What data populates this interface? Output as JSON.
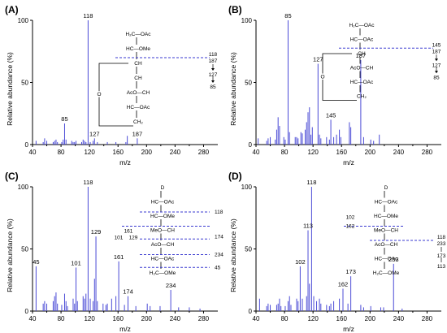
{
  "chart_data": [
    {
      "type": "bar",
      "panel_label": "(A)",
      "xlabel": "m/z",
      "ylabel": "Relative abundance (%)",
      "xlim": [
        40,
        300
      ],
      "ylim": [
        0,
        100
      ],
      "xticks": [
        "40",
        "80",
        "120",
        "160",
        "200",
        "240",
        "280"
      ],
      "yticks": [
        "0",
        "50",
        "100"
      ],
      "x": [
        45,
        55,
        57,
        60,
        69,
        71,
        73,
        75,
        81,
        83,
        85,
        87,
        95,
        97,
        99,
        101,
        109,
        111,
        113,
        115,
        118,
        121,
        125,
        127,
        131,
        145,
        157,
        171,
        173,
        187
      ],
      "y": [
        3,
        2,
        5,
        3,
        2,
        3,
        4,
        2,
        2,
        4,
        17,
        4,
        3,
        2,
        2,
        3,
        2,
        4,
        3,
        2,
        100,
        2,
        3,
        5,
        2,
        2,
        2,
        2,
        7,
        5
      ],
      "peak_labels": [
        {
          "x": 85,
          "text": "85"
        },
        {
          "x": 118,
          "text": "118"
        },
        {
          "x": 127,
          "text": "127"
        },
        {
          "x": 187,
          "text": "187"
        }
      ],
      "structure": {
        "lines": [
          "H₂C—OAc",
          "HC—OMe",
          "CH",
          "CH",
          "AcO—CH",
          "HC—OAc",
          "CH₂"
        ],
        "ring_o": "O",
        "frag_top": "118",
        "frag_bottom": "187",
        "frag_chain": [
          "127",
          "85"
        ]
      }
    },
    {
      "type": "bar",
      "panel_label": "(B)",
      "xlabel": "m/z",
      "ylabel": "Relative abundance (%)",
      "xlim": [
        40,
        300
      ],
      "ylim": [
        0,
        100
      ],
      "xticks": [
        "40",
        "80",
        "120",
        "160",
        "200",
        "240",
        "280"
      ],
      "yticks": [
        "0",
        "50",
        "100"
      ],
      "x": [
        43,
        55,
        57,
        60,
        67,
        69,
        71,
        73,
        79,
        81,
        85,
        87,
        95,
        97,
        99,
        103,
        105,
        109,
        111,
        113,
        115,
        117,
        119,
        127,
        129,
        131,
        139,
        143,
        145,
        149,
        153,
        157,
        159,
        171,
        173,
        187,
        191,
        201,
        205,
        213
      ],
      "y": [
        5,
        3,
        5,
        6,
        4,
        12,
        22,
        15,
        6,
        4,
        100,
        10,
        6,
        6,
        5,
        10,
        9,
        12,
        18,
        26,
        30,
        8,
        14,
        65,
        8,
        5,
        6,
        4,
        20,
        6,
        8,
        12,
        6,
        18,
        14,
        68,
        6,
        4,
        3,
        8
      ],
      "peak_labels": [
        {
          "x": 85,
          "text": "85"
        },
        {
          "x": 127,
          "text": "127"
        },
        {
          "x": 145,
          "text": "145"
        },
        {
          "x": 187,
          "text": "187"
        }
      ],
      "structure": {
        "lines": [
          "H₂C—OAc",
          "HC—OAc",
          "CH",
          "AcO—CH",
          "HC—OAc",
          "CH₂"
        ],
        "ring_o": "O",
        "frag_top": "145",
        "frag_bottom": "187",
        "frag_chain": [
          "127",
          "85"
        ]
      }
    },
    {
      "type": "bar",
      "panel_label": "(C)",
      "xlabel": "m/z",
      "ylabel": "Relative abundance (%)",
      "xlim": [
        40,
        300
      ],
      "ylim": [
        0,
        100
      ],
      "xticks": [
        "40",
        "80",
        "120",
        "160",
        "200",
        "240",
        "280"
      ],
      "yticks": [
        "0",
        "50",
        "100"
      ],
      "x": [
        45,
        55,
        57,
        60,
        69,
        71,
        73,
        75,
        81,
        85,
        87,
        89,
        97,
        99,
        101,
        103,
        111,
        113,
        115,
        118,
        121,
        125,
        127,
        129,
        131,
        139,
        143,
        145,
        151,
        157,
        161,
        169,
        174,
        185,
        201,
        205,
        219,
        234,
        245,
        260,
        275
      ],
      "y": [
        36,
        6,
        8,
        6,
        8,
        12,
        15,
        6,
        5,
        14,
        8,
        4,
        10,
        6,
        35,
        8,
        12,
        10,
        14,
        100,
        10,
        8,
        26,
        60,
        8,
        6,
        5,
        6,
        10,
        12,
        40,
        5,
        12,
        4,
        6,
        4,
        4,
        17,
        3,
        3,
        2
      ],
      "peak_labels": [
        {
          "x": 45,
          "text": "45"
        },
        {
          "x": 101,
          "text": "101"
        },
        {
          "x": 118,
          "text": "118"
        },
        {
          "x": 129,
          "text": "129"
        },
        {
          "x": 161,
          "text": "161"
        },
        {
          "x": 174,
          "text": "174"
        },
        {
          "x": 234,
          "text": "234"
        }
      ],
      "structure": {
        "lines": [
          "D",
          "HC—OAc",
          "HC—OMe",
          "MeO—CH",
          "AcO—CH",
          "HC—OAc",
          "H₂C—OMe"
        ],
        "frag_left_top": "161",
        "frag_left_chain": [
          "101",
          "129"
        ],
        "frag_right": [
          "118",
          "174",
          "234",
          "45"
        ]
      }
    },
    {
      "type": "bar",
      "panel_label": "(D)",
      "xlabel": "m/z",
      "ylabel": "Relative abundance (%)",
      "xlim": [
        40,
        300
      ],
      "ylim": [
        0,
        100
      ],
      "xticks": [
        "40",
        "80",
        "120",
        "160",
        "200",
        "240",
        "280"
      ],
      "yticks": [
        "0",
        "50",
        "100"
      ],
      "x": [
        45,
        55,
        57,
        60,
        69,
        71,
        73,
        75,
        81,
        85,
        87,
        89,
        97,
        99,
        102,
        105,
        111,
        113,
        115,
        118,
        121,
        125,
        129,
        131,
        139,
        143,
        145,
        149,
        157,
        162,
        169,
        173,
        187,
        191,
        201,
        215,
        219,
        233,
        245
      ],
      "y": [
        10,
        4,
        6,
        5,
        5,
        6,
        10,
        4,
        4,
        8,
        12,
        5,
        10,
        8,
        36,
        10,
        12,
        65,
        22,
        100,
        12,
        8,
        10,
        6,
        5,
        4,
        6,
        8,
        10,
        18,
        6,
        28,
        5,
        3,
        4,
        3,
        3,
        38,
        2
      ],
      "peak_labels": [
        {
          "x": 102,
          "text": "102"
        },
        {
          "x": 113,
          "text": "113"
        },
        {
          "x": 118,
          "text": "118"
        },
        {
          "x": 162,
          "text": "162"
        },
        {
          "x": 173,
          "text": "173"
        },
        {
          "x": 233,
          "text": "233"
        }
      ],
      "structure": {
        "lines": [
          "D",
          "HC—OAc",
          "HC—OMe",
          "MeO—CH",
          "AcO—CH",
          "HC—OAc",
          "H₂C—OMe"
        ],
        "frag_left": [
          "102",
          "162"
        ],
        "frag_right_top": "118",
        "frag_right": [
          "233",
          "173",
          "113"
        ]
      }
    }
  ]
}
